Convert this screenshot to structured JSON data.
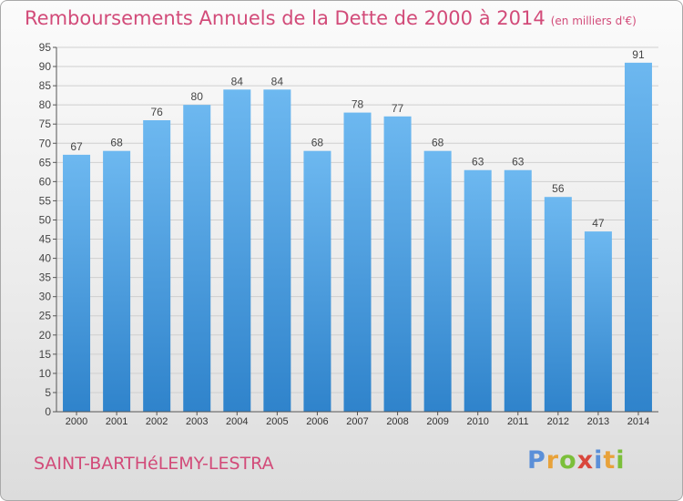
{
  "chart_title": "Remboursements Annuels de la Dette de 2000 à 2014",
  "chart_subtitle": "(en milliers d'€)",
  "city": "SAINT-BARTHéLEMY-LESTRA",
  "logo": {
    "text": "Proxiti",
    "letters": [
      "P",
      "r",
      "o",
      "x",
      "i",
      "t",
      "i"
    ]
  },
  "colors": {
    "title": "#d24b79",
    "bar_light": "#6db8f0",
    "bar_dark": "#2f83cb"
  },
  "chart_data": {
    "type": "bar",
    "title": "Remboursements Annuels de la Dette de 2000 à 2014",
    "subtitle": "(en milliers d'€)",
    "xlabel": "",
    "ylabel": "",
    "categories": [
      "2000",
      "2001",
      "2002",
      "2003",
      "2004",
      "2005",
      "2006",
      "2007",
      "2008",
      "2009",
      "2010",
      "2011",
      "2012",
      "2013",
      "2014"
    ],
    "values": [
      67,
      68,
      76,
      80,
      84,
      84,
      68,
      78,
      77,
      68,
      63,
      63,
      56,
      47,
      91
    ],
    "ylim": [
      0,
      95
    ],
    "yticks": [
      0,
      5,
      10,
      15,
      20,
      25,
      30,
      35,
      40,
      45,
      50,
      55,
      60,
      65,
      70,
      75,
      80,
      85,
      90,
      95
    ],
    "grid": true,
    "legend": "none"
  }
}
